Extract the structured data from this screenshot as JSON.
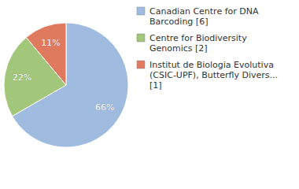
{
  "chart_data": {
    "type": "pie",
    "categories": [
      "Canadian Centre for DNA Barcoding [6]",
      "Centre for Biodiversity Genomics [2]",
      "Institut de Biologia Evolutiva (CSIC-UPF), Butterfly Divers... [1]"
    ],
    "values": [
      66,
      22,
      11
    ],
    "value_labels": [
      "66%",
      "22%",
      "11%"
    ],
    "colors": [
      "#9fbbe0",
      "#a2c67a",
      "#e07a5f"
    ],
    "data_labels": true,
    "legend": "right"
  }
}
